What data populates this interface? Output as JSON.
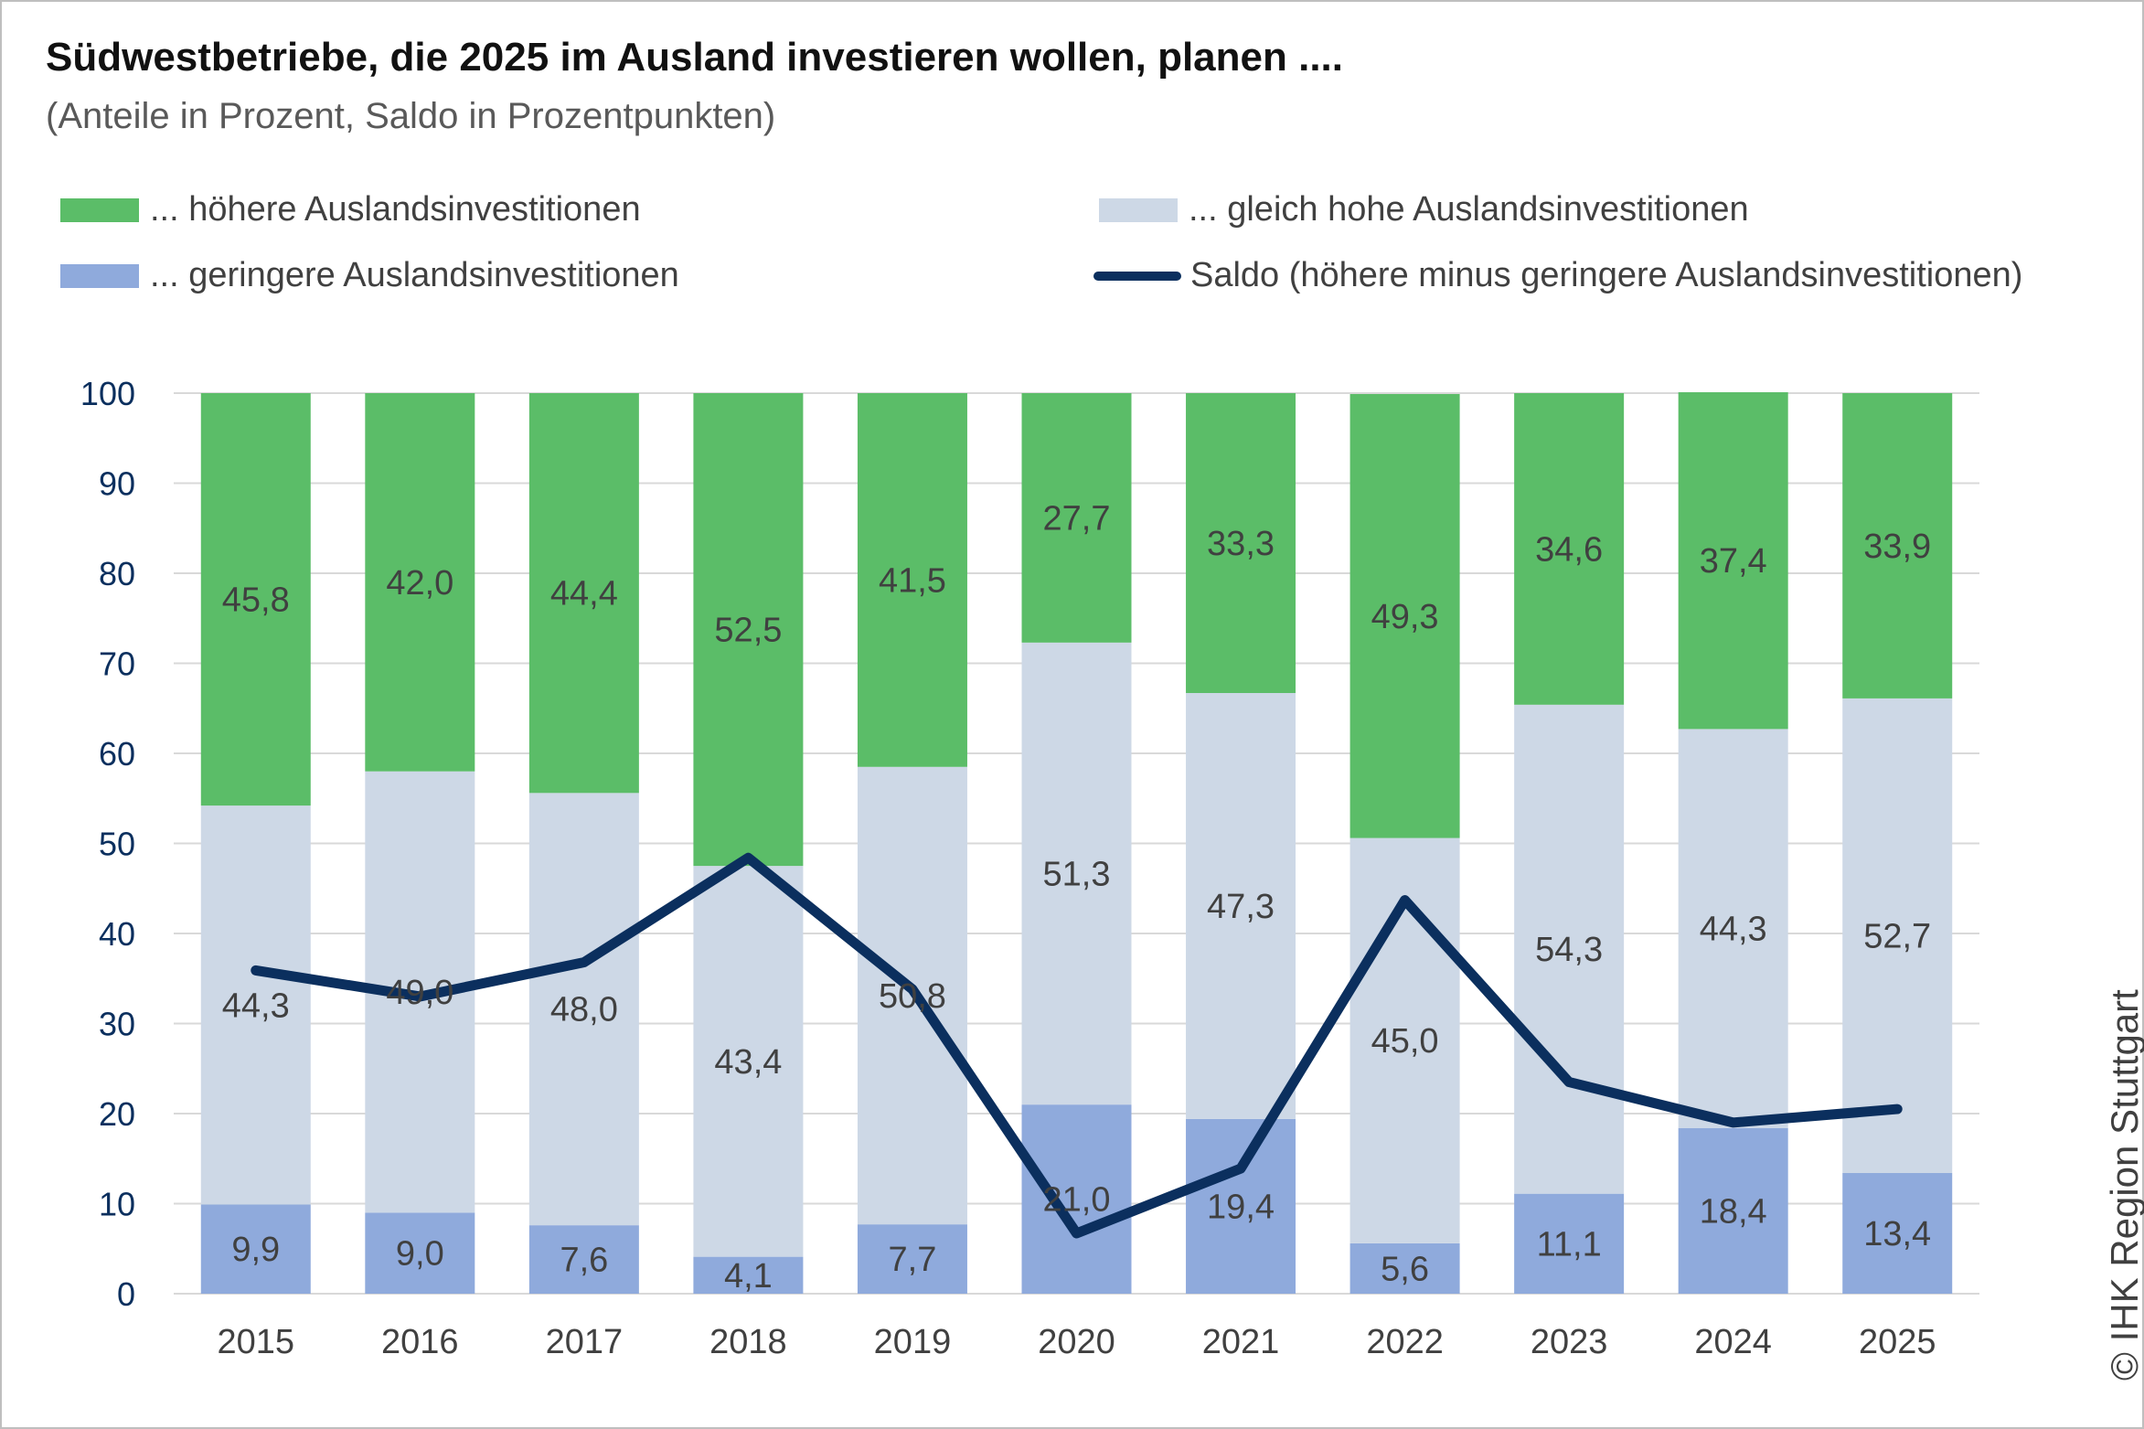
{
  "header": {
    "title": "Südwestbetriebe, die 2025 im Ausland investieren wollen, planen ....",
    "subtitle": "(Anteile in Prozent, Saldo in Prozentpunkten)"
  },
  "legend": {
    "higher": "... höhere Auslandsinvestitionen",
    "same": "... gleich hohe Auslandsinvestitionen",
    "lower": "... geringere Auslandsinvestitionen",
    "saldo": "Saldo (höhere minus geringere Auslandsinvestitionen)"
  },
  "copyright": "© IHK Region Stuttgart",
  "colors": {
    "higher": "#5bbd68",
    "same": "#cdd8e6",
    "lower": "#8faadc",
    "saldo": "#0b2f5e",
    "grid": "#d9d9d9",
    "ytick": "#0b2f5e",
    "xtick": "#404040",
    "label": "#404040"
  },
  "chart_data": {
    "type": "bar",
    "stacked": true,
    "categories": [
      "2015",
      "2016",
      "2017",
      "2018",
      "2019",
      "2020",
      "2021",
      "2022",
      "2023",
      "2024",
      "2025"
    ],
    "series": [
      {
        "name": "... geringere Auslandsinvestitionen",
        "key": "lower",
        "values": [
          9.9,
          9.0,
          7.6,
          4.1,
          7.7,
          21.0,
          19.4,
          5.6,
          11.1,
          18.4,
          13.4
        ],
        "labels": [
          "9,9",
          "9,0",
          "7,6",
          "4,1",
          "7,7",
          "21,0",
          "19,4",
          "5,6",
          "11,1",
          "18,4",
          "13,4"
        ]
      },
      {
        "name": "... gleich hohe Auslandsinvestitionen",
        "key": "same",
        "values": [
          44.3,
          49.0,
          48.0,
          43.4,
          50.8,
          51.3,
          47.3,
          45.0,
          54.3,
          44.3,
          52.7
        ],
        "labels": [
          "44,3",
          "49,0",
          "48,0",
          "43,4",
          "50,8",
          "51,3",
          "47,3",
          "45,0",
          "54,3",
          "44,3",
          "52,7"
        ]
      },
      {
        "name": "... höhere Auslandsinvestitionen",
        "key": "higher",
        "values": [
          45.8,
          42.0,
          44.4,
          52.5,
          41.5,
          27.7,
          33.3,
          49.3,
          34.6,
          37.4,
          33.9
        ],
        "labels": [
          "45,8",
          "42,0",
          "44,4",
          "52,5",
          "41,5",
          "27,7",
          "33,3",
          "49,3",
          "34,6",
          "37,4",
          "33,9"
        ]
      }
    ],
    "line": {
      "name": "Saldo (höhere minus geringere Auslandsinvestitionen)",
      "values": [
        35.9,
        33.0,
        36.8,
        48.4,
        33.8,
        6.7,
        13.9,
        43.7,
        23.5,
        19.0,
        20.5
      ]
    },
    "yticks": [
      "0",
      "10",
      "20",
      "30",
      "40",
      "50",
      "60",
      "70",
      "80",
      "90",
      "100"
    ],
    "ylim": [
      0,
      100
    ],
    "grid": true,
    "legend_position": "top"
  }
}
